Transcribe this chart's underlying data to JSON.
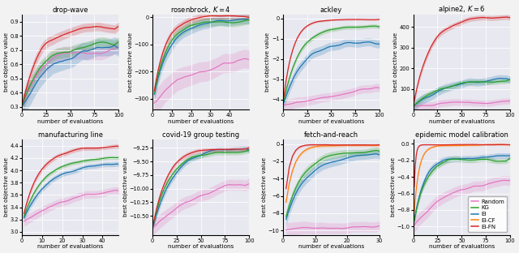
{
  "subplots": [
    {
      "title": "drop-wave",
      "xlabel": "number of evaluations",
      "ylabel": "best objective value",
      "xlim": [
        0,
        100
      ],
      "ylim": [
        0.28,
        0.95
      ],
      "yticks": [
        0.3,
        0.4,
        0.5,
        0.6,
        0.7,
        0.8,
        0.9
      ],
      "xticks": [
        0,
        25,
        50,
        75,
        100
      ]
    },
    {
      "title": "rosenbrock, $K = 4$",
      "xlabel": "number of evaluations",
      "ylabel": "best objective value",
      "xlim": [
        0,
        50
      ],
      "ylim": [
        -340,
        10
      ],
      "yticks": [
        -300,
        -200,
        -100,
        0
      ],
      "xticks": [
        0,
        10,
        20,
        30,
        40
      ]
    },
    {
      "title": "ackley",
      "xlabel": "number of evaluations",
      "ylabel": "best objective value",
      "xlim": [
        0,
        100
      ],
      "ylim": [
        -4.5,
        0.2
      ],
      "yticks": [
        -4,
        -3,
        -2,
        -1,
        0
      ],
      "xticks": [
        0,
        25,
        50,
        75,
        100
      ]
    },
    {
      "title": "alpine2, $K = 6$",
      "xlabel": "number of evaluations",
      "ylabel": "best objective value",
      "xlim": [
        0,
        100
      ],
      "ylim": [
        0,
        460
      ],
      "yticks": [
        100,
        200,
        300,
        400
      ],
      "xticks": [
        0,
        25,
        50,
        75,
        100
      ]
    },
    {
      "title": "manufacturing line",
      "xlabel": "number of evaluations",
      "ylabel": "best objective value",
      "xlim": [
        0,
        48
      ],
      "ylim": [
        2.95,
        4.5
      ],
      "yticks": [
        3.0,
        3.2,
        3.4,
        3.6,
        3.8,
        4.0,
        4.2,
        4.4
      ],
      "xticks": [
        0,
        10,
        20,
        30,
        40
      ]
    },
    {
      "title": "covid-19 group testing",
      "xlabel": "number of evaluations",
      "ylabel": "best objective value",
      "xlim": [
        0,
        100
      ],
      "ylim": [
        -10.85,
        -9.1
      ],
      "yticks": [
        -10.5,
        -10.25,
        -10.0,
        -9.75,
        -9.5,
        -9.25
      ],
      "xticks": [
        0,
        25,
        50,
        75,
        100
      ]
    },
    {
      "title": "fetch-and-reach",
      "xlabel": "number of evaluations",
      "ylabel": "best objective value",
      "xlim": [
        0,
        30
      ],
      "ylim": [
        -10.5,
        0.5
      ],
      "yticks": [
        -10,
        -8,
        -6,
        -4,
        -2,
        0
      ],
      "xticks": [
        0,
        10,
        20,
        30
      ]
    },
    {
      "title": "epidemic model calibration",
      "xlabel": "number of evaluations",
      "ylabel": "best objective value",
      "xlim": [
        0,
        100
      ],
      "ylim": [
        -1.1,
        0.05
      ],
      "yticks": [
        -1.0,
        -0.8,
        -0.6,
        -0.4,
        -0.2,
        0.0
      ],
      "xticks": [
        0,
        25,
        50,
        75,
        100
      ]
    }
  ],
  "colors": {
    "Random": "#e377c2",
    "KG": "#2ca02c",
    "EI": "#1f77b4",
    "EI-CF": "#ff7f0e",
    "EI-FN": "#d62728"
  },
  "bg_color": "#e8e8f0"
}
